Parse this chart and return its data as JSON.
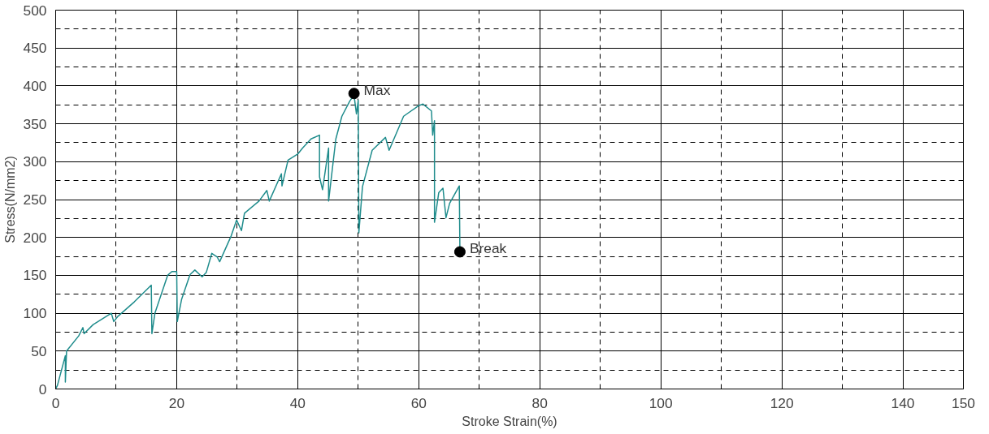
{
  "chart_data": {
    "type": "line",
    "xlabel": "Stroke Strain(%)",
    "ylabel": "Stress(N/mm2)",
    "xlim": [
      0,
      150
    ],
    "ylim": [
      0,
      500
    ],
    "xticks": [
      0,
      20,
      40,
      60,
      80,
      100,
      120,
      140,
      150
    ],
    "yticks": [
      0,
      50,
      100,
      150,
      200,
      250,
      300,
      350,
      400,
      450,
      500
    ],
    "grid": true,
    "series": [
      {
        "color": "#1f8c8c",
        "marker": "none",
        "x": [
          0,
          0.3,
          1.6,
          1.6,
          1.8,
          3.8,
          4.5,
          4.7,
          6.2,
          9.2,
          9.6,
          10.3,
          13.0,
          15.8,
          15.9,
          16.4,
          18.5,
          19.2,
          20.0,
          20.1,
          20.8,
          22.2,
          23.0,
          24.2,
          24.9,
          25.8,
          26.7,
          27.1,
          29.0,
          29.9,
          30.7,
          31.2,
          33.6,
          34.9,
          35.3,
          37.3,
          37.4,
          38.4,
          40.0,
          40.8,
          42.2,
          43.6,
          43.6,
          44.1,
          45.1,
          45.1,
          46.3,
          47.3,
          48.6,
          49.3,
          49.7,
          50.0,
          50.1,
          50.7,
          52.3,
          54.5,
          55.1,
          57.5,
          60.0,
          60.7,
          62.1,
          62.3,
          62.6,
          62.6,
          63.3,
          64.0,
          64.5,
          65.1,
          66.7,
          66.8
        ],
        "values": [
          0,
          5,
          44,
          9,
          50,
          70,
          81,
          73,
          85,
          100,
          89,
          96,
          115,
          137,
          73,
          100,
          150,
          155,
          155,
          89,
          118,
          151,
          157,
          148,
          154,
          179,
          174,
          168,
          202,
          223,
          209,
          232,
          248,
          262,
          248,
          284,
          268,
          302,
          310,
          318,
          330,
          335,
          280,
          263,
          318,
          248,
          330,
          360,
          380,
          388,
          363,
          381,
          206,
          267,
          315,
          332,
          315,
          360,
          374,
          376,
          367,
          335,
          354,
          220,
          259,
          265,
          226,
          245,
          268,
          181
        ]
      },
      {
        "type": "scatter",
        "color": "#000000",
        "marker": "circle",
        "x": [
          49.3,
          66.8
        ],
        "values": [
          390,
          181
        ]
      }
    ],
    "annotations": [
      {
        "text": "Max",
        "x": 49.3,
        "y": 390
      },
      {
        "text": "Break",
        "x": 66.8,
        "y": 181
      }
    ]
  }
}
